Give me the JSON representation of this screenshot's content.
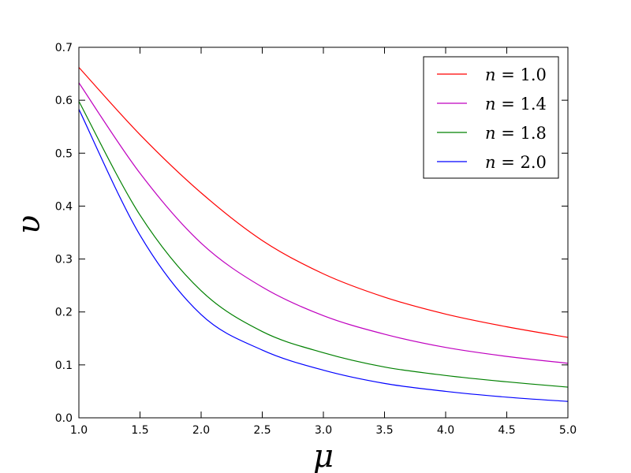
{
  "chart_data": {
    "type": "line",
    "title": "",
    "xlabel": "μ",
    "ylabel": "υ",
    "xlim": [
      1.0,
      5.0
    ],
    "ylim": [
      0.0,
      0.7
    ],
    "xticks": [
      "1.0",
      "1.5",
      "2.0",
      "2.5",
      "3.0",
      "3.5",
      "4.0",
      "4.5",
      "5.0"
    ],
    "yticks": [
      "0.0",
      "0.1",
      "0.2",
      "0.3",
      "0.4",
      "0.5",
      "0.6",
      "0.7"
    ],
    "grid": false,
    "legend_position": "top-right",
    "x": [
      1.0,
      1.5,
      2.0,
      2.5,
      3.0,
      3.5,
      4.0,
      4.5,
      5.0
    ],
    "series": [
      {
        "name": "n = 1.0",
        "color": "#ff0000",
        "values": [
          0.662,
          0.535,
          0.425,
          0.335,
          0.272,
          0.228,
          0.196,
          0.172,
          0.152
        ]
      },
      {
        "name": "n = 1.4",
        "color": "#bf00bf",
        "values": [
          0.633,
          0.462,
          0.33,
          0.247,
          0.193,
          0.158,
          0.133,
          0.116,
          0.103
        ]
      },
      {
        "name": "n = 1.8",
        "color": "#008000",
        "values": [
          0.598,
          0.383,
          0.24,
          0.163,
          0.123,
          0.096,
          0.08,
          0.068,
          0.058
        ]
      },
      {
        "name": "n = 2.0",
        "color": "#0000ff",
        "values": [
          0.583,
          0.345,
          0.195,
          0.128,
          0.09,
          0.065,
          0.05,
          0.039,
          0.031
        ]
      }
    ]
  }
}
